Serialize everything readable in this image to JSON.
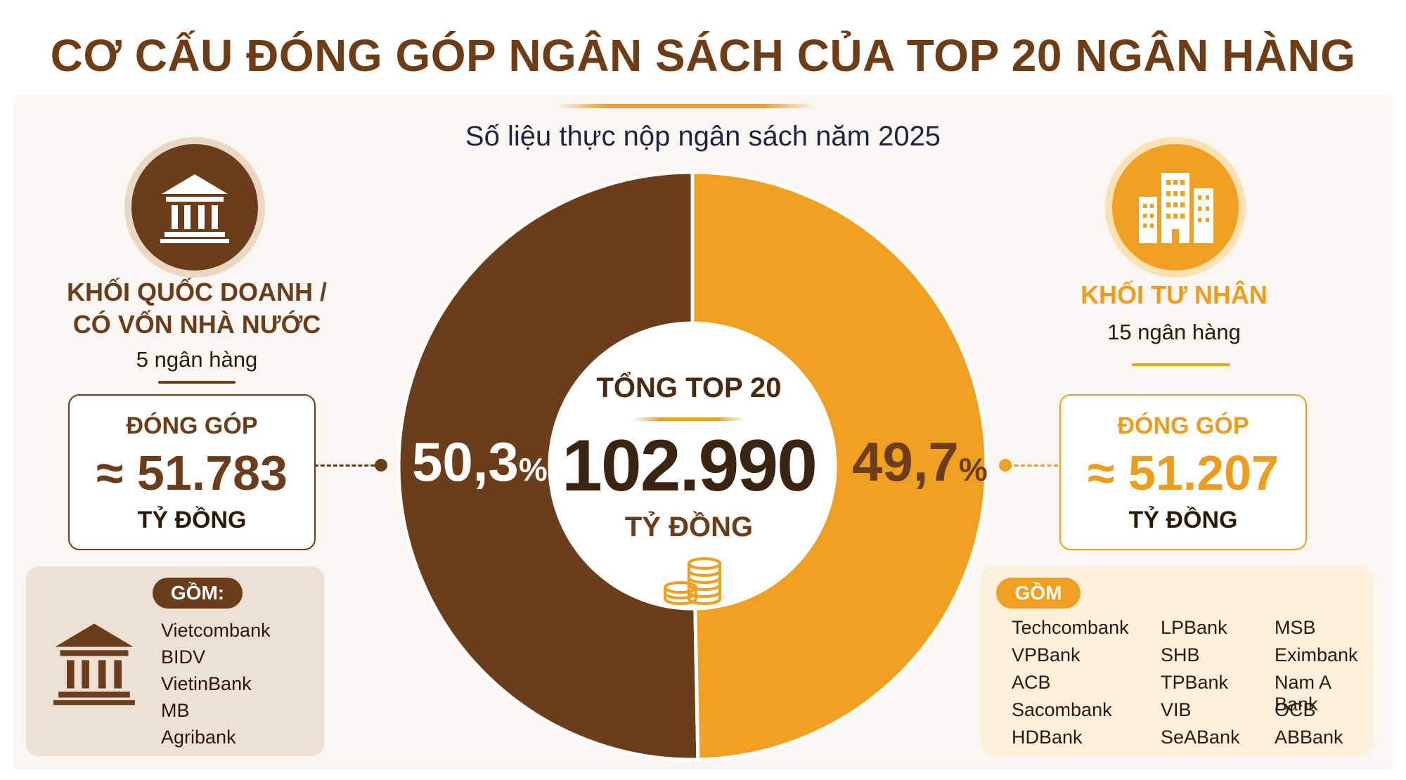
{
  "title": "CƠ CẤU ĐÓNG GÓP NGÂN SÁCH CỦA TOP 20 NGÂN HÀNG",
  "subtitle": "Số liệu thực nộp ngân sách năm 2025",
  "left_group": {
    "title_line1": "KHỐI QUỐC DOANH /",
    "title_line2": "CÓ VỐN NHÀ NƯỚC",
    "count": "5 ngân hàng",
    "contribution_label": "ĐÓNG GÓP",
    "contribution_value": "≈ 51.783",
    "unit": "TỶ ĐỒNG",
    "members_label": "GỒM:",
    "members": [
      "Vietcombank",
      "BIDV",
      "VietinBank",
      "MB",
      "Agribank"
    ],
    "color": "#6b3d1a",
    "icon": "bank-building-icon"
  },
  "right_group": {
    "title": "KHỐI TƯ NHÂN",
    "count": "15 ngân hàng",
    "contribution_label": "ĐÓNG GÓP",
    "contribution_value": "≈ 51.207",
    "unit": "TỶ ĐỒNG",
    "members_label": "GỒM",
    "members": [
      "Techcombank",
      "VPBank",
      "ACB",
      "Sacombank",
      "HDBank",
      "LPBank",
      "SHB",
      "TPBank",
      "VIB",
      "SeABank",
      "MSB",
      "Eximbank",
      "Nam A Bank",
      "OCB",
      "ABBank"
    ],
    "color": "#f0a020",
    "icon": "office-buildings-icon"
  },
  "center": {
    "title": "TỔNG TOP 20",
    "total": "102.990",
    "unit": "TỶ ĐỒNG",
    "icon": "coin-stack-icon"
  },
  "chart_data": {
    "type": "pie",
    "categories": [
      "KHỐI QUỐC DOANH / CÓ VỐN NHÀ NƯỚC",
      "KHỐI TƯ NHÂN"
    ],
    "values": [
      50.3,
      49.7
    ],
    "labels": [
      "50,3",
      "49,7"
    ],
    "label_suffix": "%",
    "colors": [
      "#6b3d1a",
      "#f0a020"
    ],
    "donut": true
  }
}
